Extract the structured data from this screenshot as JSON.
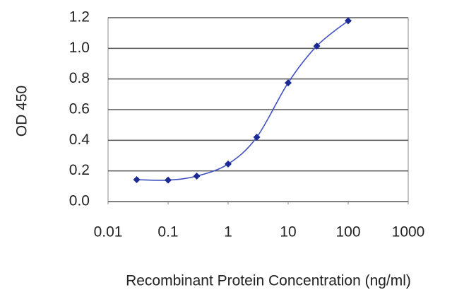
{
  "chart_data": {
    "type": "line",
    "x_label": "Recombinant Protein Concentration (ng/ml)",
    "y_label": "OD 450",
    "x": [
      0.03,
      0.1,
      0.3,
      1,
      3,
      10,
      30,
      100
    ],
    "series": [
      {
        "color": "#1c2a96",
        "values": [
          0.143,
          0.14,
          0.166,
          0.245,
          0.42,
          0.775,
          1.015,
          1.18
        ]
      }
    ],
    "xscale": "log",
    "xlim": [
      0.01,
      1000
    ],
    "xticks": [
      0.01,
      0.1,
      1,
      10,
      100,
      1000
    ],
    "ylim": [
      0,
      1.2
    ],
    "yticks": [
      {
        "value": 0,
        "label": "0.0"
      },
      0.2,
      0.4,
      0.6,
      0.8,
      {
        "value": 1,
        "label": "1.0"
      },
      1.2
    ],
    "grid": true
  }
}
